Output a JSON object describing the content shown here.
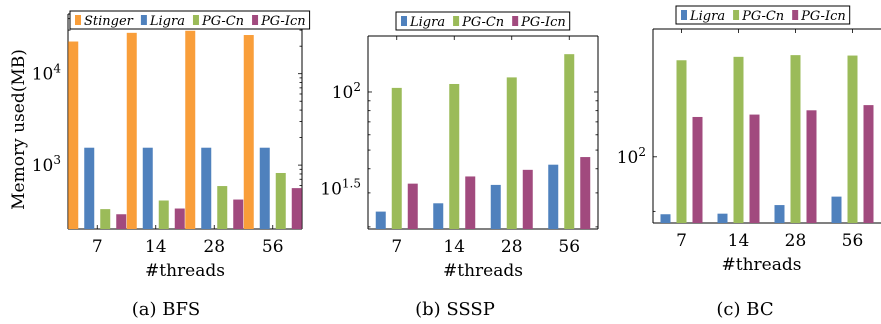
{
  "figure": {
    "ylabel": "Memory used(MB)",
    "xlabel": "#threads"
  },
  "chart_data": [
    {
      "type": "bar",
      "caption": "(a) BFS",
      "yscale": "log",
      "ylim": [
        200,
        45000
      ],
      "ylabel": "Memory used(MB)",
      "xlabel": "#threads",
      "categories": [
        "7",
        "14",
        "28",
        "56"
      ],
      "ytick_labels": [
        {
          "base": "10",
          "exp": "3",
          "value": 1000
        },
        {
          "base": "10",
          "exp": "4",
          "value": 10000
        }
      ],
      "legend": "top",
      "series": [
        {
          "name": "Stinger",
          "color": "#f99e3a",
          "values": [
            22500,
            28000,
            29500,
            26500
          ]
        },
        {
          "name": "Ligra",
          "color": "#4f81bd",
          "values": [
            1550,
            1550,
            1550,
            1550
          ]
        },
        {
          "name": "PG-Cn",
          "color": "#9bbb59",
          "values": [
            330,
            410,
            590,
            820
          ]
        },
        {
          "name": "PG-Icn",
          "color": "#a14a7e",
          "values": [
            290,
            335,
            420,
            560
          ]
        }
      ]
    },
    {
      "type": "bar",
      "caption": "(b) SSSP",
      "yscale": "log",
      "ylim": [
        19.5,
        195
      ],
      "xlabel": "#threads",
      "categories": [
        "7",
        "14",
        "28",
        "56"
      ],
      "ytick_labels": [
        {
          "base": "10",
          "exp": "1.5",
          "value": 31.6
        },
        {
          "base": "10",
          "exp": "2",
          "value": 100
        }
      ],
      "legend": "top",
      "series": [
        {
          "name": "Ligra",
          "color": "#4f81bd",
          "values": [
            24,
            26.5,
            33,
            42
          ]
        },
        {
          "name": "PG-Cn",
          "color": "#9bbb59",
          "values": [
            105,
            110,
            119,
            157
          ]
        },
        {
          "name": "PG-Icn",
          "color": "#a14a7e",
          "values": [
            33.5,
            36.5,
            39.5,
            46
          ]
        }
      ]
    },
    {
      "type": "bar",
      "caption": "(c) BC",
      "yscale": "log",
      "ylim": [
        88,
        128
      ],
      "xlabel": "#threads",
      "categories": [
        "7",
        "14",
        "28",
        "56"
      ],
      "ytick_labels": [
        {
          "base": "10",
          "exp": "2",
          "value": 100
        }
      ],
      "legend": "top",
      "series": [
        {
          "name": "Ligra",
          "color": "#4f81bd",
          "values": [
            89.5,
            89.6,
            91.1,
            92.6
          ]
        },
        {
          "name": "PG-Cn",
          "color": "#9bbb59",
          "values": [
            120.5,
            121.3,
            121.7,
            121.6
          ]
        },
        {
          "name": "PG-Icn",
          "color": "#a14a7e",
          "values": [
            108,
            108.5,
            109.4,
            110.5
          ]
        }
      ]
    }
  ]
}
